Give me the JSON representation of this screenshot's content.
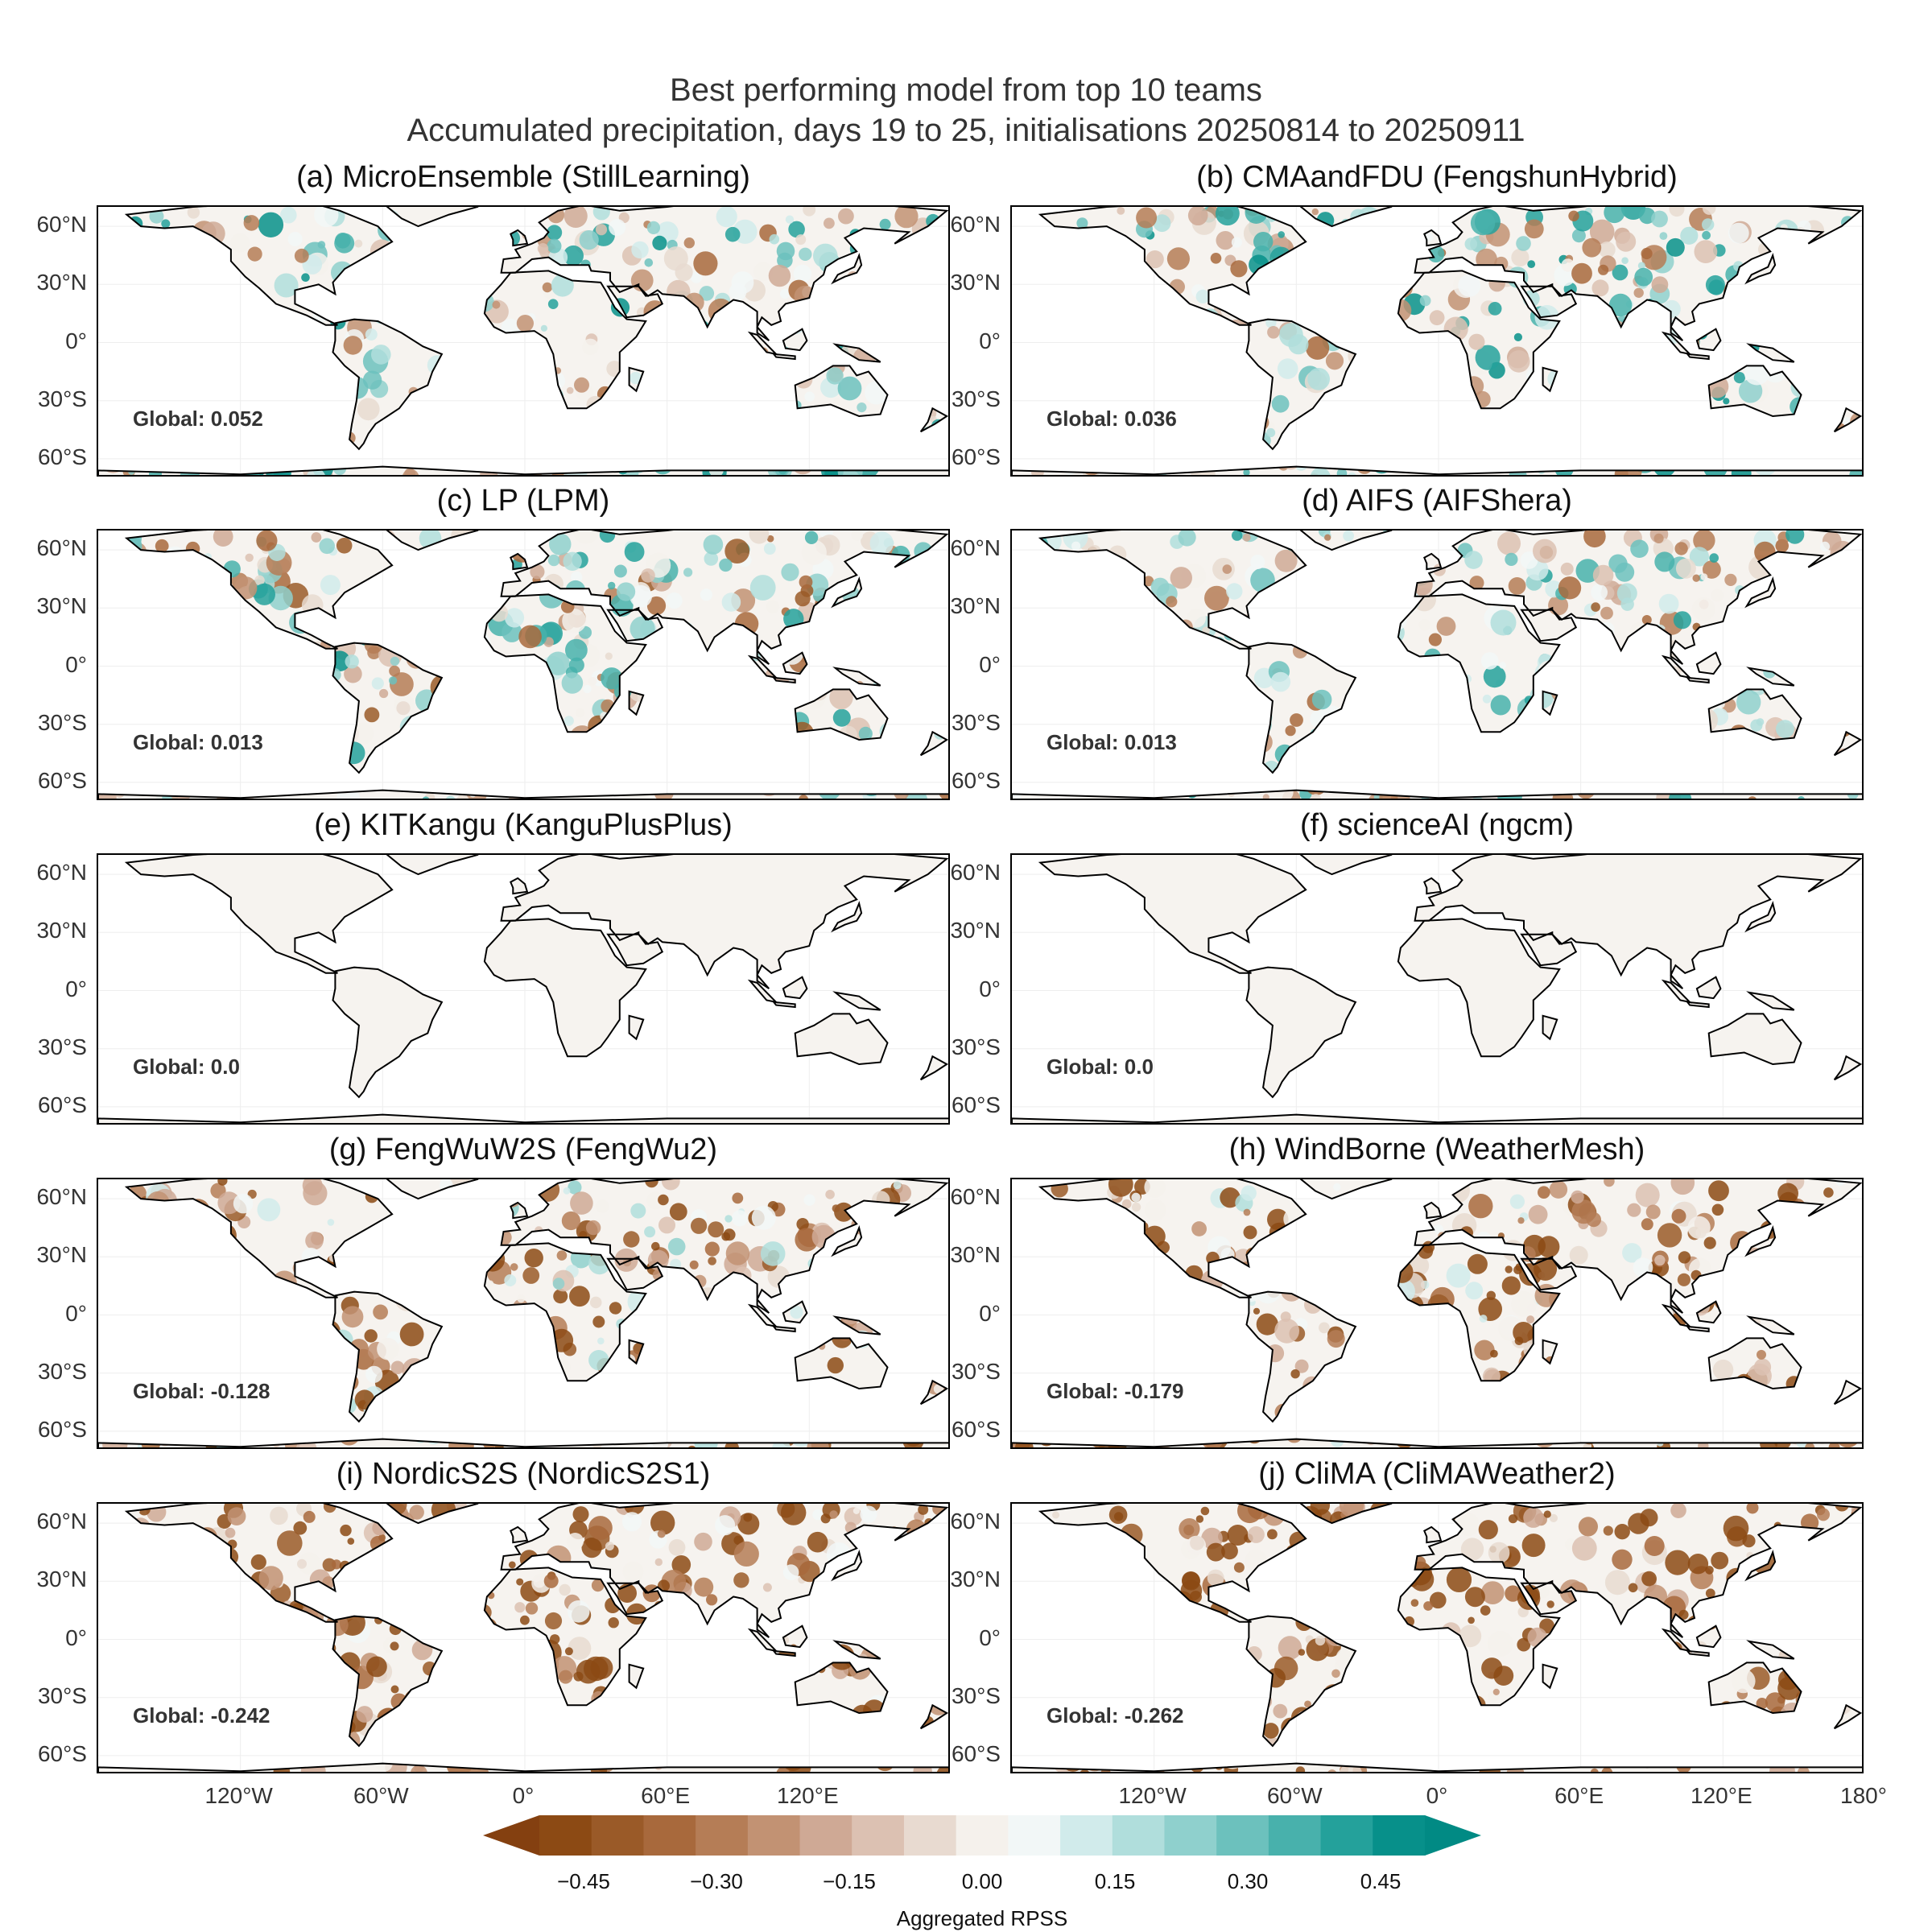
{
  "title_line1": "Best performing model from top 10 teams",
  "title_line2": "Accumulated precipitation, days 19 to 25, initialisations 20250814 to 20250911",
  "lat_labels": [
    "60°N",
    "30°N",
    "0°",
    "30°S",
    "60°S"
  ],
  "lon_labels_left": [
    "120°W",
    "60°W",
    "0°",
    "60°E",
    "120°E"
  ],
  "lon_labels_right": [
    "120°W",
    "60°W",
    "0°",
    "60°E",
    "120°E",
    "180°"
  ],
  "panels": [
    {
      "title": "(a) MicroEnsemble (StillLearning)",
      "global": "Global: 0.052",
      "score": 0.052
    },
    {
      "title": "(b) CMAandFDU (FengshunHybrid)",
      "global": "Global: 0.036",
      "score": 0.036
    },
    {
      "title": "(c) LP (LPM)",
      "global": "Global: 0.013",
      "score": 0.013
    },
    {
      "title": "(d) AIFS (AIFShera)",
      "global": "Global: 0.013",
      "score": 0.013
    },
    {
      "title": "(e) KITKangu (KanguPlusPlus)",
      "global": "Global: 0.0",
      "score": 0.0
    },
    {
      "title": "(f) scienceAI (ngcm)",
      "global": "Global: 0.0",
      "score": 0.0
    },
    {
      "title": "(g) FengWuW2S (FengWu2)",
      "global": "Global: -0.128",
      "score": -0.128
    },
    {
      "title": "(h) WindBorne (WeatherMesh)",
      "global": "Global: -0.179",
      "score": -0.179
    },
    {
      "title": "(i) NordicS2S (NordicS2S1)",
      "global": "Global: -0.242",
      "score": -0.242
    },
    {
      "title": "(j) CliMA (CliMAWeather2)",
      "global": "Global: -0.262",
      "score": -0.262
    }
  ],
  "colorbar": {
    "label": "Aggregated RPSS",
    "ticks": [
      "−0.45",
      "−0.30",
      "−0.15",
      "0.00",
      "0.15",
      "0.30",
      "0.45"
    ],
    "colors": [
      "#8c4a14",
      "#9a5a28",
      "#a8693c",
      "#b57d56",
      "#c29273",
      "#cfa995",
      "#dcc1b2",
      "#e8dad0",
      "#f5f1ec",
      "#f2f7f7",
      "#d1ebeb",
      "#b0dedc",
      "#8fd0cd",
      "#6cc1bd",
      "#48b1ac",
      "#24a19b",
      "#07908a"
    ],
    "under_color": "#844010",
    "over_color": "#018a84"
  }
}
